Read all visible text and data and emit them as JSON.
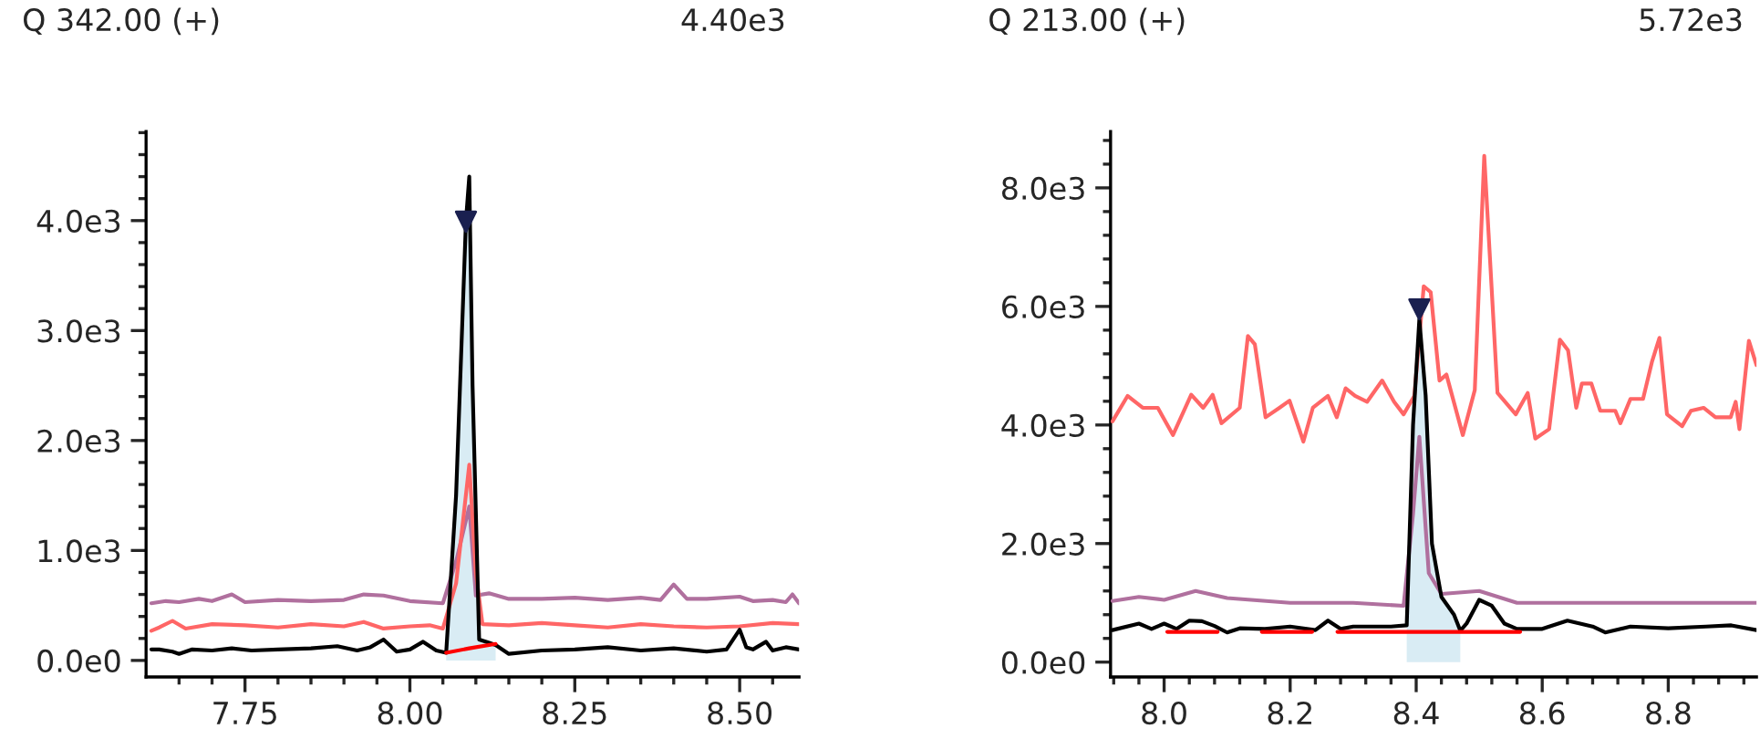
{
  "chart_data": [
    {
      "type": "line",
      "title": "Q 342.00 (+)",
      "annotations": [
        "4.40e3"
      ],
      "xlim": [
        7.6,
        8.59
      ],
      "ylim": [
        -150,
        4810
      ],
      "xticks": [
        {
          "value": 7.65,
          "label": null
        },
        {
          "value": 7.7,
          "label": null
        },
        {
          "value": 7.75,
          "label": "7.75"
        },
        {
          "value": 7.8,
          "label": null
        },
        {
          "value": 7.85,
          "label": null
        },
        {
          "value": 7.9,
          "label": null
        },
        {
          "value": 7.95,
          "label": null
        },
        {
          "value": 8.0,
          "label": "8.00"
        },
        {
          "value": 8.05,
          "label": null
        },
        {
          "value": 8.1,
          "label": null
        },
        {
          "value": 8.15,
          "label": null
        },
        {
          "value": 8.2,
          "label": null
        },
        {
          "value": 8.25,
          "label": "8.25"
        },
        {
          "value": 8.3,
          "label": null
        },
        {
          "value": 8.35,
          "label": null
        },
        {
          "value": 8.4,
          "label": null
        },
        {
          "value": 8.45,
          "label": null
        },
        {
          "value": 8.5,
          "label": "8.50"
        },
        {
          "value": 8.55,
          "label": null
        }
      ],
      "yticks": [
        {
          "value": 0,
          "label": "0.0e0"
        },
        {
          "value": 200,
          "label": null
        },
        {
          "value": 400,
          "label": null
        },
        {
          "value": 600,
          "label": null
        },
        {
          "value": 800,
          "label": null
        },
        {
          "value": 1000,
          "label": "1.0e3"
        },
        {
          "value": 1200,
          "label": null
        },
        {
          "value": 1400,
          "label": null
        },
        {
          "value": 1600,
          "label": null
        },
        {
          "value": 1800,
          "label": null
        },
        {
          "value": 2000,
          "label": "2.0e3"
        },
        {
          "value": 2200,
          "label": null
        },
        {
          "value": 2400,
          "label": null
        },
        {
          "value": 2600,
          "label": null
        },
        {
          "value": 2800,
          "label": null
        },
        {
          "value": 3000,
          "label": "3.0e3"
        },
        {
          "value": 3200,
          "label": null
        },
        {
          "value": 3400,
          "label": null
        },
        {
          "value": 3600,
          "label": null
        },
        {
          "value": 3800,
          "label": null
        },
        {
          "value": 4000,
          "label": "4.0e3"
        },
        {
          "value": 4200,
          "label": null
        },
        {
          "value": 4400,
          "label": null
        },
        {
          "value": 4600,
          "label": null
        },
        {
          "value": 4800,
          "label": null
        }
      ],
      "grid": false,
      "legend": false,
      "series": [
        {
          "color": "#b0709e",
          "x": [
            7.608,
            7.63,
            7.65,
            7.68,
            7.7,
            7.73,
            7.75,
            7.8,
            7.85,
            7.9,
            7.93,
            7.96,
            8.0,
            8.05,
            8.07,
            8.09,
            8.1,
            8.12,
            8.15,
            8.2,
            8.25,
            8.3,
            8.35,
            8.38,
            8.4,
            8.42,
            8.45,
            8.5,
            8.52,
            8.55,
            8.57,
            8.58,
            8.59
          ],
          "values": [
            520,
            540,
            530,
            560,
            540,
            600,
            530,
            550,
            540,
            550,
            600,
            590,
            540,
            520,
            900,
            1400,
            590,
            610,
            560,
            560,
            570,
            550,
            570,
            550,
            690,
            560,
            560,
            580,
            540,
            550,
            530,
            600,
            520
          ]
        },
        {
          "color": "#ff6666",
          "x": [
            7.608,
            7.62,
            7.64,
            7.66,
            7.7,
            7.75,
            7.8,
            7.85,
            7.9,
            7.93,
            7.96,
            8.0,
            8.03,
            8.05,
            8.07,
            8.09,
            8.1,
            8.11,
            8.15,
            8.2,
            8.25,
            8.3,
            8.35,
            8.4,
            8.45,
            8.5,
            8.55,
            8.59
          ],
          "values": [
            270,
            300,
            360,
            290,
            330,
            320,
            300,
            330,
            310,
            350,
            290,
            310,
            320,
            290,
            700,
            1780,
            800,
            330,
            320,
            340,
            320,
            300,
            330,
            310,
            300,
            310,
            340,
            330
          ]
        },
        {
          "type": "area",
          "color": "#d9ecf4",
          "x": [
            8.055,
            8.07,
            8.085,
            8.09,
            8.095,
            8.105,
            8.12,
            8.13
          ],
          "values": [
            70,
            1500,
            4000,
            4400,
            2500,
            190,
            160,
            150
          ]
        },
        {
          "color": "#000000",
          "x": [
            7.608,
            7.62,
            7.64,
            7.65,
            7.67,
            7.7,
            7.73,
            7.76,
            7.8,
            7.85,
            7.89,
            7.92,
            7.94,
            7.96,
            7.98,
            8.0,
            8.02,
            8.04,
            8.055,
            8.07,
            8.085,
            8.09,
            8.095,
            8.105,
            8.12,
            8.13,
            8.15,
            8.2,
            8.25,
            8.3,
            8.35,
            8.4,
            8.45,
            8.48,
            8.5,
            8.51,
            8.52,
            8.54,
            8.55,
            8.57,
            8.59
          ],
          "values": [
            100,
            100,
            80,
            60,
            100,
            90,
            110,
            90,
            100,
            110,
            130,
            90,
            120,
            190,
            80,
            100,
            170,
            90,
            70,
            1500,
            4000,
            4400,
            2500,
            190,
            160,
            140,
            60,
            90,
            100,
            120,
            90,
            110,
            80,
            100,
            280,
            120,
            100,
            170,
            90,
            120,
            100
          ]
        },
        {
          "color": "#ff0000",
          "x": [
            8.055,
            8.09,
            8.13
          ],
          "values": [
            70,
            110,
            150
          ]
        },
        {
          "type": "scatter",
          "color": "#1a2050",
          "marker": "triangle",
          "x": [
            8.085
          ],
          "values": [
            3990
          ]
        }
      ]
    },
    {
      "type": "line",
      "title": "Q 213.00 (+)",
      "annotations": [
        "5.72e3"
      ],
      "xlim": [
        7.915,
        8.94
      ],
      "ylim": [
        -250,
        8950
      ],
      "xticks": [
        {
          "value": 7.92,
          "label": null
        },
        {
          "value": 7.96,
          "label": null
        },
        {
          "value": 8.0,
          "label": "8.0"
        },
        {
          "value": 8.04,
          "label": null
        },
        {
          "value": 8.08,
          "label": null
        },
        {
          "value": 8.12,
          "label": null
        },
        {
          "value": 8.16,
          "label": null
        },
        {
          "value": 8.2,
          "label": "8.2"
        },
        {
          "value": 8.24,
          "label": null
        },
        {
          "value": 8.28,
          "label": null
        },
        {
          "value": 8.32,
          "label": null
        },
        {
          "value": 8.36,
          "label": null
        },
        {
          "value": 8.4,
          "label": "8.4"
        },
        {
          "value": 8.44,
          "label": null
        },
        {
          "value": 8.48,
          "label": null
        },
        {
          "value": 8.52,
          "label": null
        },
        {
          "value": 8.56,
          "label": null
        },
        {
          "value": 8.6,
          "label": "8.6"
        },
        {
          "value": 8.64,
          "label": null
        },
        {
          "value": 8.68,
          "label": null
        },
        {
          "value": 8.72,
          "label": null
        },
        {
          "value": 8.76,
          "label": null
        },
        {
          "value": 8.8,
          "label": "8.8"
        },
        {
          "value": 8.84,
          "label": null
        },
        {
          "value": 8.88,
          "label": null
        },
        {
          "value": 8.92,
          "label": null
        }
      ],
      "yticks": [
        {
          "value": 0,
          "label": "0.0e0"
        },
        {
          "value": 400,
          "label": null
        },
        {
          "value": 800,
          "label": null
        },
        {
          "value": 1200,
          "label": null
        },
        {
          "value": 1600,
          "label": null
        },
        {
          "value": 2000,
          "label": "2.0e3"
        },
        {
          "value": 2400,
          "label": null
        },
        {
          "value": 2800,
          "label": null
        },
        {
          "value": 3200,
          "label": null
        },
        {
          "value": 3600,
          "label": null
        },
        {
          "value": 4000,
          "label": "4.0e3"
        },
        {
          "value": 4400,
          "label": null
        },
        {
          "value": 4800,
          "label": null
        },
        {
          "value": 5200,
          "label": null
        },
        {
          "value": 5600,
          "label": null
        },
        {
          "value": 6000,
          "label": "6.0e3"
        },
        {
          "value": 6400,
          "label": null
        },
        {
          "value": 6800,
          "label": null
        },
        {
          "value": 7200,
          "label": null
        },
        {
          "value": 7600,
          "label": null
        },
        {
          "value": 8000,
          "label": "8.0e3"
        },
        {
          "value": 8400,
          "label": null
        },
        {
          "value": 8800,
          "label": null
        }
      ],
      "grid": false,
      "legend": false,
      "series": [
        {
          "color": "#b0709e",
          "x": [
            7.918,
            7.96,
            8.0,
            8.05,
            8.1,
            8.2,
            8.3,
            8.38,
            8.395,
            8.405,
            8.42,
            8.44,
            8.5,
            8.56,
            8.7,
            8.8,
            8.94
          ],
          "values": [
            1030,
            1100,
            1050,
            1200,
            1080,
            1000,
            1000,
            950,
            2500,
            3800,
            1500,
            1150,
            1200,
            1000,
            1000,
            1000,
            1000
          ]
        },
        {
          "color": "#ff6666",
          "x": [
            7.918,
            7.942,
            7.966,
            7.99,
            8.014,
            8.043,
            8.062,
            8.077,
            8.091,
            8.12,
            8.133,
            8.144,
            8.161,
            8.183,
            8.199,
            8.221,
            8.236,
            8.26,
            8.274,
            8.288,
            8.303,
            8.322,
            8.346,
            8.365,
            8.38,
            8.397,
            8.412,
            8.423,
            8.437,
            8.448,
            8.474,
            8.493,
            8.508,
            8.529,
            8.558,
            8.577,
            8.589,
            8.611,
            8.628,
            8.641,
            8.654,
            8.663,
            8.678,
            8.692,
            8.716,
            8.724,
            8.74,
            8.76,
            8.774,
            8.786,
            8.798,
            8.822,
            8.836,
            8.856,
            8.875,
            8.899,
            8.907,
            8.913,
            8.928,
            8.94
          ],
          "values": [
            4060,
            4490,
            4290,
            4290,
            3830,
            4510,
            4290,
            4510,
            4030,
            4290,
            5500,
            5360,
            4130,
            4290,
            4410,
            3720,
            4290,
            4490,
            4130,
            4620,
            4490,
            4390,
            4750,
            4390,
            4180,
            4490,
            6340,
            6240,
            4750,
            4850,
            3830,
            4590,
            8540,
            4540,
            4180,
            4540,
            3770,
            3930,
            5440,
            5260,
            4290,
            4700,
            4700,
            4240,
            4240,
            4030,
            4440,
            4440,
            5060,
            5470,
            4180,
            3980,
            4240,
            4290,
            4130,
            4130,
            4390,
            3930,
            5420,
            5010
          ]
        },
        {
          "type": "area",
          "color": "#d9ecf4",
          "x": [
            8.385,
            8.395,
            8.405,
            8.415,
            8.425,
            8.44,
            8.46,
            8.47
          ],
          "values": [
            600,
            4000,
            5780,
            4500,
            2000,
            1100,
            800,
            530
          ]
        },
        {
          "color": "#000000",
          "x": [
            7.918,
            7.96,
            7.98,
            8.0,
            8.02,
            8.04,
            8.06,
            8.08,
            8.1,
            8.12,
            8.16,
            8.2,
            8.24,
            8.26,
            8.28,
            8.3,
            8.36,
            8.385,
            8.395,
            8.405,
            8.415,
            8.425,
            8.44,
            8.46,
            8.47,
            8.48,
            8.5,
            8.52,
            8.54,
            8.56,
            8.6,
            8.64,
            8.68,
            8.7,
            8.74,
            8.8,
            8.86,
            8.9,
            8.94
          ],
          "values": [
            540,
            650,
            560,
            650,
            560,
            700,
            690,
            610,
            500,
            570,
            560,
            600,
            540,
            700,
            560,
            600,
            600,
            620,
            4000,
            5780,
            4500,
            2000,
            1100,
            800,
            530,
            650,
            1050,
            950,
            650,
            560,
            560,
            700,
            600,
            500,
            600,
            570,
            600,
            620,
            540
          ]
        },
        {
          "color": "#ff0000",
          "x": [
            8.005,
            8.085,
            8.12,
            8.155,
            8.235,
            8.255,
            8.275,
            8.565
          ],
          "values": [
            510,
            510,
            null,
            510,
            510,
            null,
            510,
            510
          ]
        },
        {
          "type": "scatter",
          "color": "#1a2050",
          "marker": "triangle",
          "x": [
            8.405
          ],
          "values": [
            5950
          ]
        }
      ]
    }
  ]
}
